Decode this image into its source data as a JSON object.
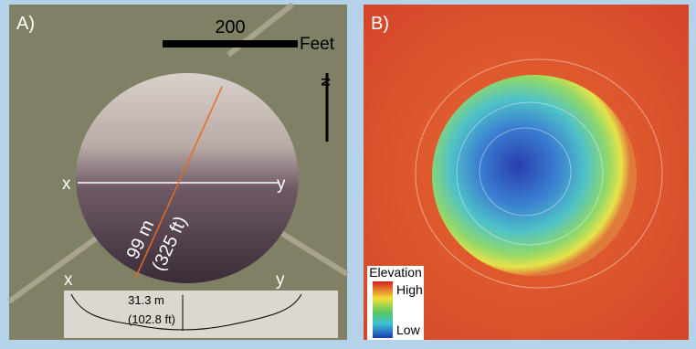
{
  "panel_a": {
    "label": "A)",
    "scale_value": "200",
    "scale_unit": "Feet",
    "north": "N",
    "section_start": "x",
    "section_end": "y",
    "diameter_m": "99 m",
    "diameter_ft": "(325 ft)",
    "profile_start": "x",
    "profile_end": "y",
    "depth_m": "31.3 m",
    "depth_ft": "(102.8 ft)"
  },
  "panel_b": {
    "label": "B)",
    "legend_title": "Elevation",
    "legend_high": "High",
    "legend_low": "Low"
  }
}
